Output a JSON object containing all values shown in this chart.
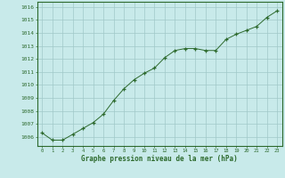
{
  "x": [
    0,
    1,
    2,
    3,
    4,
    5,
    6,
    7,
    8,
    9,
    10,
    11,
    12,
    13,
    14,
    15,
    16,
    17,
    18,
    19,
    20,
    21,
    22,
    23
  ],
  "y": [
    1006.3,
    1005.75,
    1005.75,
    1006.2,
    1006.65,
    1007.1,
    1007.75,
    1008.8,
    1009.7,
    1010.4,
    1010.9,
    1011.3,
    1012.1,
    1012.65,
    1012.8,
    1012.8,
    1012.65,
    1012.65,
    1013.5,
    1013.9,
    1014.2,
    1014.5,
    1015.2,
    1015.7
  ],
  "line_color": "#2d6a2d",
  "marker": "+",
  "bg_color": "#c8eaea",
  "grid_color": "#a0c8c8",
  "xlabel": "Graphe pression niveau de la mer (hPa)",
  "xlabel_color": "#2d6a2d",
  "ylabel_ticks": [
    1006,
    1007,
    1008,
    1009,
    1010,
    1011,
    1012,
    1013,
    1014,
    1015,
    1016
  ],
  "ylim": [
    1005.3,
    1016.4
  ],
  "xlim": [
    -0.5,
    23.5
  ],
  "xticks": [
    0,
    1,
    2,
    3,
    4,
    5,
    6,
    7,
    8,
    9,
    10,
    11,
    12,
    13,
    14,
    15,
    16,
    17,
    18,
    19,
    20,
    21,
    22,
    23
  ]
}
